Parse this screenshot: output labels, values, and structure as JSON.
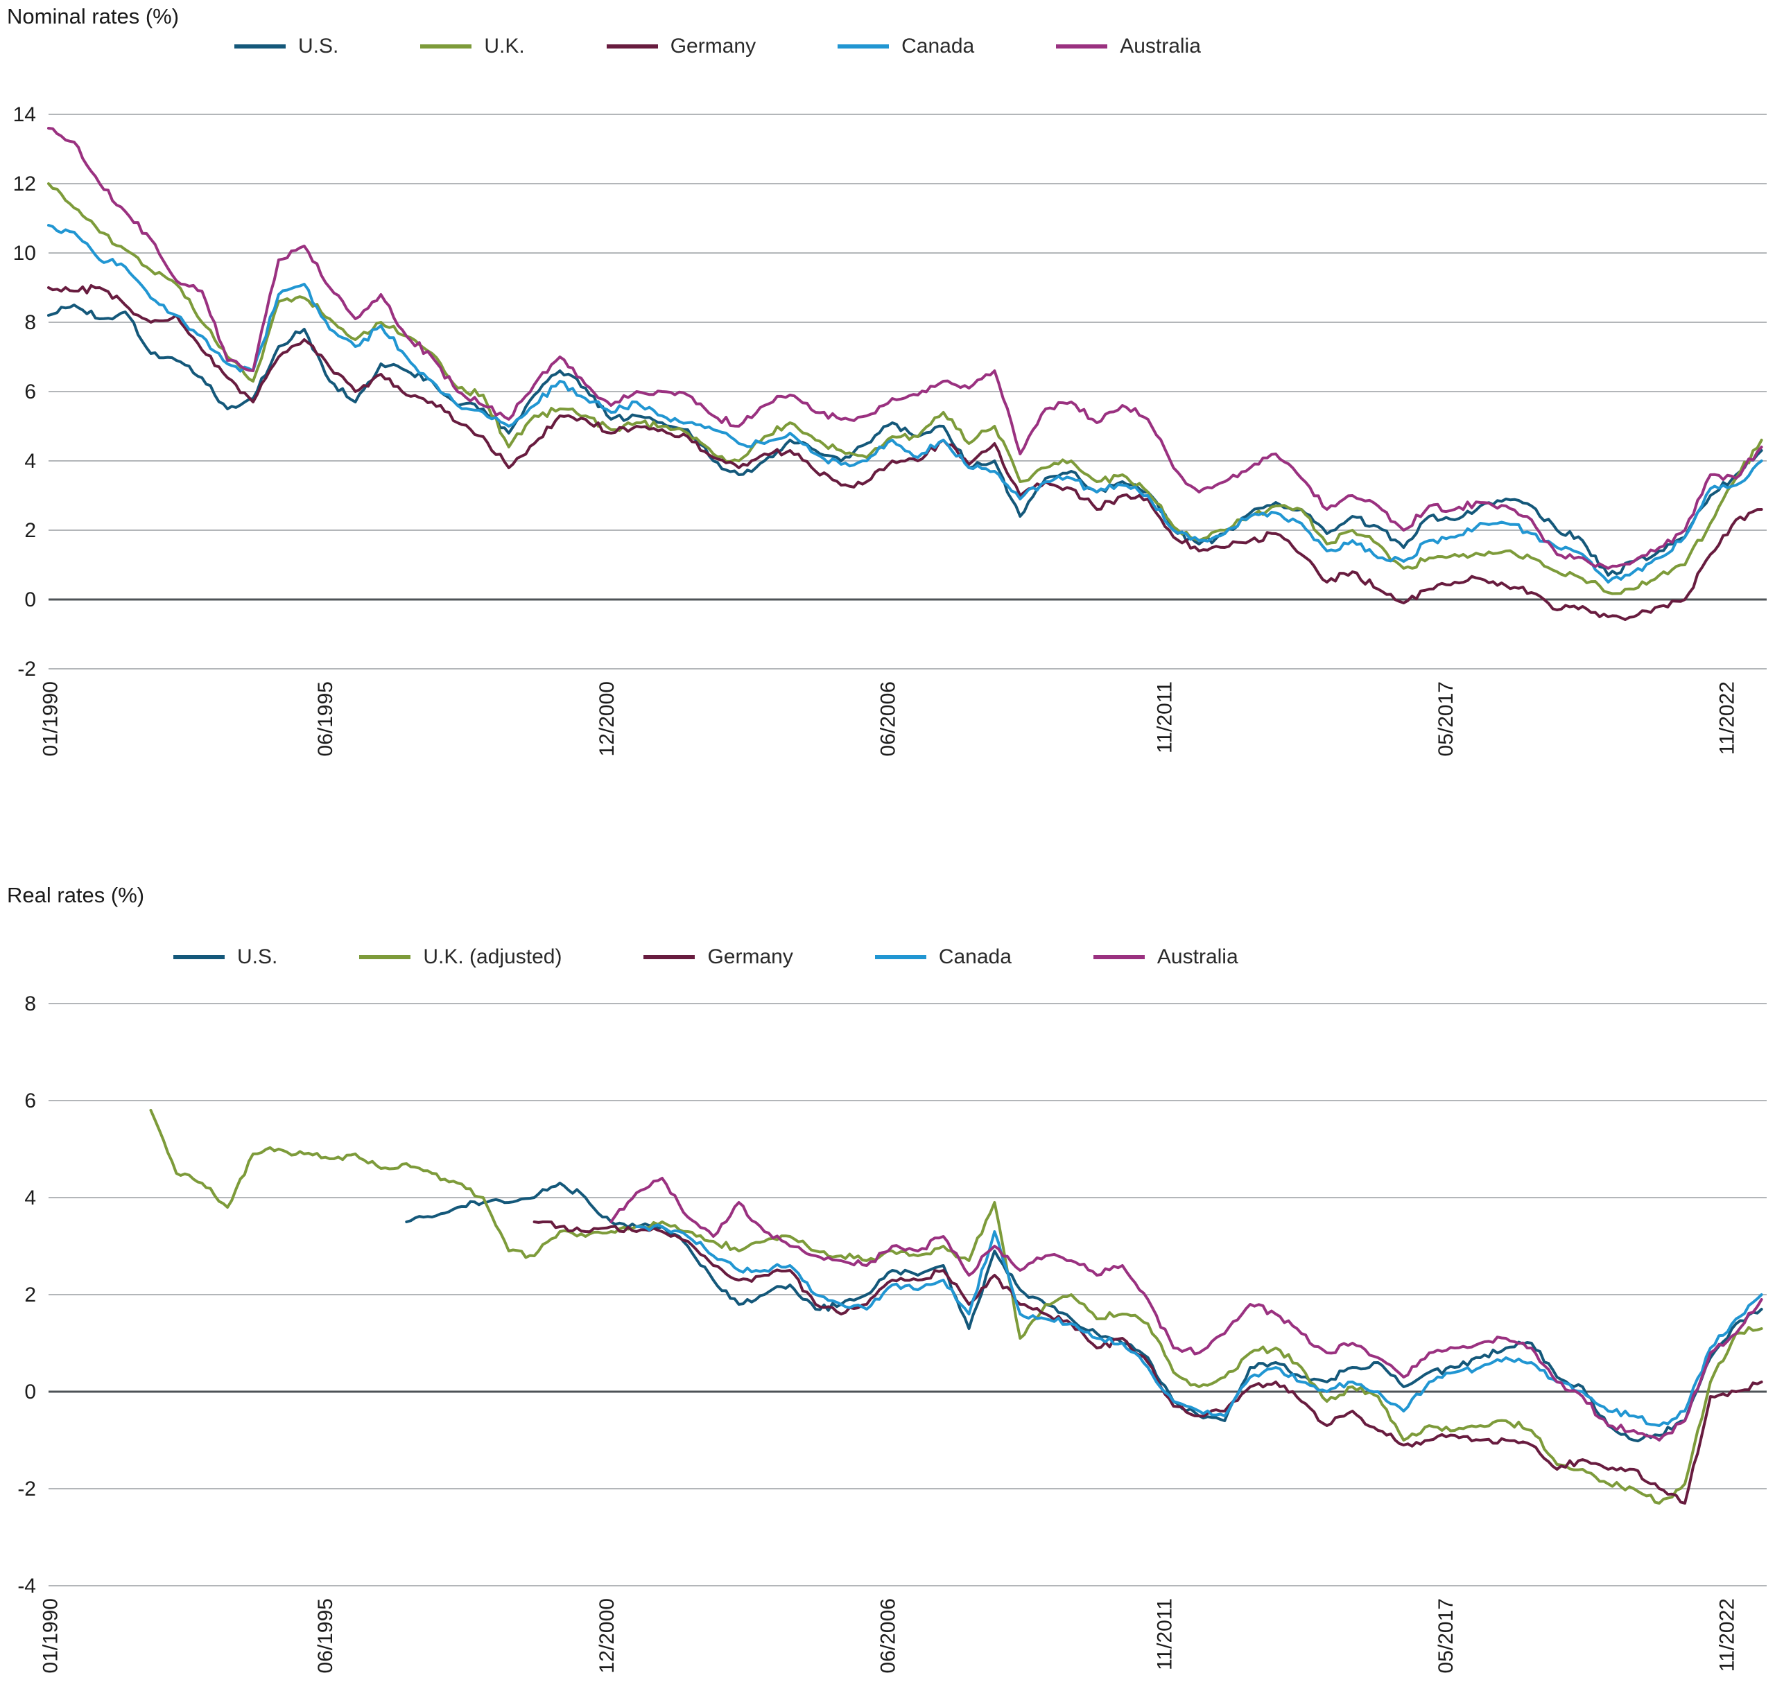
{
  "page": {
    "background": "#ffffff"
  },
  "style": {
    "gridline_color": "#b3b6b9",
    "zero_line_color": "#4e5357",
    "text_color": "#1b1b1b"
  },
  "chart_data": [
    {
      "type": "line",
      "title": "Nominal rates (%)",
      "xlabel": "",
      "ylabel": "",
      "ylim": [
        -2,
        14
      ],
      "yticks": [
        14,
        12,
        10,
        8,
        6,
        4,
        2,
        0,
        -2
      ],
      "grid": true,
      "legend_position": "top",
      "x_unit": "decimal_year",
      "xticks": [
        {
          "label": "01/1990",
          "t": 1990.04
        },
        {
          "label": "06/1995",
          "t": 1995.42
        },
        {
          "label": "12/2000",
          "t": 2000.92
        },
        {
          "label": "06/2006",
          "t": 2006.42
        },
        {
          "label": "11/2011",
          "t": 2011.83
        },
        {
          "label": "05/2017",
          "t": 2017.33
        },
        {
          "label": "11/2022",
          "t": 2022.83
        }
      ],
      "x": [
        1990,
        1990.5,
        1991,
        1991.5,
        1992,
        1992.5,
        1993,
        1993.5,
        1994,
        1994.5,
        1995,
        1995.5,
        1996,
        1996.5,
        1997,
        1997.5,
        1998,
        1998.5,
        1999,
        1999.5,
        2000,
        2000.5,
        2001,
        2001.5,
        2002,
        2002.5,
        2003,
        2003.5,
        2004,
        2004.5,
        2005,
        2005.5,
        2006,
        2006.5,
        2007,
        2007.5,
        2008,
        2008.5,
        2009,
        2009.5,
        2010,
        2010.5,
        2011,
        2011.5,
        2012,
        2012.5,
        2013,
        2013.5,
        2014,
        2014.5,
        2015,
        2015.5,
        2016,
        2016.5,
        2017,
        2017.5,
        2018,
        2018.5,
        2019,
        2019.5,
        2020,
        2020.5,
        2021,
        2021.5,
        2022,
        2022.5,
        2023,
        2023.5
      ],
      "series": [
        {
          "name": "U.S.",
          "color": "#14587a",
          "values": [
            8.2,
            8.5,
            8.1,
            8.3,
            7.1,
            6.9,
            6.4,
            5.5,
            5.8,
            7.3,
            7.8,
            6.3,
            5.7,
            6.8,
            6.6,
            6.3,
            5.6,
            5.5,
            4.8,
            5.9,
            6.6,
            6.1,
            5.2,
            5.3,
            5.1,
            4.9,
            4.0,
            3.6,
            4.0,
            4.6,
            4.3,
            4.0,
            4.5,
            5.1,
            4.7,
            5.0,
            3.8,
            4.0,
            2.4,
            3.5,
            3.7,
            3.1,
            3.4,
            3.1,
            2.0,
            1.6,
            1.9,
            2.5,
            2.8,
            2.6,
            1.9,
            2.4,
            2.1,
            1.5,
            2.4,
            2.3,
            2.7,
            2.9,
            2.7,
            2.0,
            1.7,
            0.7,
            1.1,
            1.4,
            1.8,
            3.0,
            3.6,
            4.3
          ]
        },
        {
          "name": "U.K.",
          "color": "#7d9b3a",
          "values": [
            12.0,
            11.3,
            10.6,
            10.1,
            9.5,
            9.1,
            8.0,
            7.0,
            6.3,
            8.6,
            8.7,
            8.1,
            7.5,
            8.0,
            7.6,
            7.1,
            6.1,
            5.9,
            4.4,
            5.3,
            5.5,
            5.3,
            4.9,
            5.1,
            5.0,
            4.8,
            4.2,
            4.0,
            4.7,
            5.1,
            4.6,
            4.3,
            4.1,
            4.7,
            4.7,
            5.4,
            4.5,
            5.0,
            3.4,
            3.8,
            4.0,
            3.4,
            3.6,
            3.1,
            2.1,
            1.7,
            2.0,
            2.4,
            2.7,
            2.6,
            1.6,
            2.0,
            1.6,
            0.9,
            1.2,
            1.3,
            1.3,
            1.4,
            1.2,
            0.8,
            0.6,
            0.2,
            0.3,
            0.7,
            1.0,
            2.2,
            3.5,
            4.6
          ]
        },
        {
          "name": "Germany",
          "color": "#681c3f",
          "values": [
            9.0,
            8.9,
            9.0,
            8.5,
            8.0,
            8.2,
            7.2,
            6.4,
            5.7,
            7.0,
            7.5,
            6.7,
            6.0,
            6.5,
            5.9,
            5.7,
            5.1,
            4.7,
            3.8,
            4.5,
            5.3,
            5.2,
            4.8,
            5.0,
            4.9,
            4.7,
            4.1,
            3.8,
            4.2,
            4.3,
            3.7,
            3.3,
            3.4,
            4.0,
            4.0,
            4.6,
            3.9,
            4.5,
            3.0,
            3.4,
            3.2,
            2.6,
            3.0,
            2.9,
            1.8,
            1.4,
            1.5,
            1.7,
            1.9,
            1.3,
            0.5,
            0.8,
            0.3,
            -0.1,
            0.3,
            0.5,
            0.6,
            0.4,
            0.2,
            -0.3,
            -0.2,
            -0.5,
            -0.5,
            -0.2,
            0.0,
            1.3,
            2.3,
            2.6
          ]
        },
        {
          "name": "Canada",
          "color": "#2196d2",
          "values": [
            10.8,
            10.6,
            9.8,
            9.6,
            8.7,
            8.2,
            7.6,
            6.8,
            6.6,
            8.8,
            9.1,
            7.8,
            7.3,
            7.9,
            7.0,
            6.3,
            5.6,
            5.4,
            5.0,
            5.6,
            6.3,
            5.8,
            5.4,
            5.7,
            5.3,
            5.1,
            4.9,
            4.5,
            4.5,
            4.8,
            4.2,
            3.9,
            4.0,
            4.6,
            4.1,
            4.6,
            3.8,
            3.7,
            2.9,
            3.4,
            3.5,
            3.1,
            3.3,
            3.0,
            2.0,
            1.7,
            1.9,
            2.4,
            2.5,
            2.2,
            1.4,
            1.7,
            1.2,
            1.1,
            1.7,
            1.8,
            2.2,
            2.2,
            1.9,
            1.5,
            1.3,
            0.5,
            0.8,
            1.2,
            1.8,
            3.2,
            3.3,
            4.0
          ]
        },
        {
          "name": "Australia",
          "color": "#9a3180",
          "values": [
            13.6,
            13.2,
            12.0,
            11.2,
            10.4,
            9.2,
            8.9,
            6.9,
            6.6,
            9.8,
            10.2,
            9.0,
            8.1,
            8.8,
            7.6,
            7.0,
            6.0,
            5.6,
            5.2,
            6.2,
            7.0,
            6.2,
            5.6,
            6.0,
            6.0,
            5.9,
            5.3,
            5.0,
            5.6,
            5.9,
            5.4,
            5.2,
            5.3,
            5.8,
            5.9,
            6.3,
            6.1,
            6.6,
            4.2,
            5.5,
            5.7,
            5.1,
            5.6,
            5.2,
            3.8,
            3.1,
            3.4,
            3.8,
            4.2,
            3.5,
            2.6,
            3.0,
            2.7,
            2.0,
            2.7,
            2.6,
            2.8,
            2.7,
            2.3,
            1.3,
            1.2,
            0.9,
            1.1,
            1.5,
            2.0,
            3.6,
            3.5,
            4.4
          ]
        }
      ]
    },
    {
      "type": "line",
      "title": "Real rates (%)",
      "xlabel": "",
      "ylabel": "",
      "ylim": [
        -4,
        8
      ],
      "yticks": [
        8,
        6,
        4,
        2,
        0,
        -2,
        -4
      ],
      "grid": true,
      "legend_position": "top",
      "x_unit": "decimal_year",
      "xticks": [
        {
          "label": "01/1990",
          "t": 1990.04
        },
        {
          "label": "06/1995",
          "t": 1995.42
        },
        {
          "label": "12/2000",
          "t": 2000.92
        },
        {
          "label": "06/2006",
          "t": 2006.42
        },
        {
          "label": "11/2011",
          "t": 2011.83
        },
        {
          "label": "05/2017",
          "t": 2017.33
        },
        {
          "label": "11/2022",
          "t": 2022.83
        }
      ],
      "x": [
        1990,
        1990.5,
        1991,
        1991.5,
        1992,
        1992.5,
        1993,
        1993.5,
        1994,
        1994.5,
        1995,
        1995.5,
        1996,
        1996.5,
        1997,
        1997.5,
        1998,
        1998.5,
        1999,
        1999.5,
        2000,
        2000.5,
        2001,
        2001.5,
        2002,
        2002.5,
        2003,
        2003.5,
        2004,
        2004.5,
        2005,
        2005.5,
        2006,
        2006.5,
        2007,
        2007.5,
        2008,
        2008.5,
        2009,
        2009.5,
        2010,
        2010.5,
        2011,
        2011.5,
        2012,
        2012.5,
        2013,
        2013.5,
        2014,
        2014.5,
        2015,
        2015.5,
        2016,
        2016.5,
        2017,
        2017.5,
        2018,
        2018.5,
        2019,
        2019.5,
        2020,
        2020.5,
        2021,
        2021.5,
        2022,
        2022.5,
        2023,
        2023.5
      ],
      "series": [
        {
          "name": "U.S.",
          "color": "#14587a",
          "values": [
            null,
            null,
            null,
            null,
            null,
            null,
            null,
            null,
            null,
            null,
            null,
            null,
            null,
            null,
            3.5,
            3.6,
            3.8,
            3.9,
            3.9,
            4.0,
            4.3,
            4.0,
            3.5,
            3.4,
            3.4,
            3.0,
            2.3,
            1.8,
            2.0,
            2.2,
            1.7,
            1.8,
            2.0,
            2.5,
            2.4,
            2.6,
            1.3,
            2.9,
            2.1,
            1.8,
            1.5,
            1.2,
            1.0,
            0.7,
            -0.2,
            -0.5,
            -0.6,
            0.5,
            0.6,
            0.3,
            0.2,
            0.5,
            0.6,
            0.1,
            0.4,
            0.5,
            0.7,
            0.9,
            1.0,
            0.3,
            0.1,
            -0.7,
            -1.0,
            -0.9,
            -0.6,
            0.7,
            1.4,
            1.7
          ]
        },
        {
          "name": "U.K. (adjusted)",
          "color": "#7d9b3a",
          "values": [
            null,
            null,
            null,
            null,
            5.8,
            4.5,
            4.3,
            3.8,
            4.9,
            5.0,
            4.9,
            4.8,
            4.9,
            4.6,
            4.7,
            4.5,
            4.3,
            4.0,
            2.9,
            2.8,
            3.3,
            3.2,
            3.3,
            3.4,
            3.5,
            3.3,
            3.1,
            2.9,
            3.1,
            3.2,
            2.9,
            2.8,
            2.7,
            2.9,
            2.8,
            3.0,
            2.7,
            3.9,
            1.1,
            1.8,
            2.0,
            1.5,
            1.6,
            1.4,
            0.4,
            0.1,
            0.3,
            0.8,
            0.9,
            0.5,
            -0.2,
            0.1,
            -0.1,
            -1.0,
            -0.7,
            -0.8,
            -0.7,
            -0.6,
            -0.8,
            -1.5,
            -1.6,
            -1.9,
            -2.0,
            -2.3,
            -1.9,
            0.2,
            1.2,
            1.3
          ]
        },
        {
          "name": "Germany",
          "color": "#681c3f",
          "values": [
            null,
            null,
            null,
            null,
            null,
            null,
            null,
            null,
            null,
            null,
            null,
            null,
            null,
            null,
            null,
            null,
            null,
            null,
            null,
            3.5,
            3.4,
            3.3,
            3.4,
            3.3,
            3.3,
            3.1,
            2.6,
            2.3,
            2.4,
            2.5,
            1.8,
            1.6,
            1.8,
            2.3,
            2.3,
            2.5,
            1.8,
            2.4,
            1.8,
            1.6,
            1.4,
            0.9,
            1.1,
            0.6,
            -0.3,
            -0.5,
            -0.4,
            0.1,
            0.2,
            -0.2,
            -0.7,
            -0.4,
            -0.8,
            -1.1,
            -1.0,
            -0.9,
            -1.0,
            -1.0,
            -1.1,
            -1.6,
            -1.4,
            -1.6,
            -1.6,
            -2.0,
            -2.3,
            -0.1,
            0.0,
            0.2
          ]
        },
        {
          "name": "Canada",
          "color": "#2196d2",
          "values": [
            null,
            null,
            null,
            null,
            null,
            null,
            null,
            null,
            null,
            null,
            null,
            null,
            null,
            null,
            null,
            null,
            null,
            null,
            null,
            null,
            null,
            null,
            null,
            3.4,
            3.4,
            3.2,
            2.8,
            2.5,
            2.5,
            2.6,
            2.0,
            1.8,
            1.7,
            2.2,
            2.1,
            2.3,
            1.6,
            3.3,
            1.6,
            1.5,
            1.4,
            1.1,
            1.0,
            0.5,
            -0.2,
            -0.4,
            -0.5,
            0.3,
            0.5,
            0.2,
            0.0,
            0.2,
            0.0,
            -0.4,
            0.2,
            0.4,
            0.5,
            0.7,
            0.6,
            0.2,
            0.0,
            -0.4,
            -0.5,
            -0.7,
            -0.4,
            0.9,
            1.5,
            2.0
          ]
        },
        {
          "name": "Australia",
          "color": "#9a3180",
          "values": [
            null,
            null,
            null,
            null,
            null,
            null,
            null,
            null,
            null,
            null,
            null,
            null,
            null,
            null,
            null,
            null,
            null,
            null,
            null,
            null,
            null,
            null,
            3.5,
            4.1,
            4.4,
            3.6,
            3.2,
            3.9,
            3.3,
            3.0,
            2.8,
            2.7,
            2.6,
            3.0,
            2.9,
            3.2,
            2.4,
            3.0,
            2.5,
            2.8,
            2.7,
            2.4,
            2.6,
            1.9,
            0.9,
            0.8,
            1.2,
            1.8,
            1.6,
            1.2,
            0.8,
            1.0,
            0.7,
            0.3,
            0.8,
            0.9,
            1.0,
            1.1,
            0.9,
            0.2,
            -0.1,
            -0.7,
            -0.8,
            -1.0,
            -0.6,
            0.8,
            1.2,
            1.9
          ]
        }
      ]
    }
  ]
}
